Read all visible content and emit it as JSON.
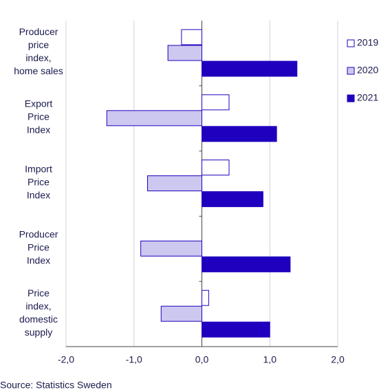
{
  "chart_data": {
    "type": "barh",
    "categories": [
      "Producer\nprice\nindex,\nhome sales",
      "Export\nPrice\nIndex",
      "Import\nPrice\nIndex",
      "Producer\nPrice\nIndex",
      "Price\nindex,\ndomestic\nsupply"
    ],
    "series": [
      {
        "name": "2019",
        "color": "#ffffff",
        "values": [
          -0.3,
          0.4,
          0.4,
          0,
          0.1
        ]
      },
      {
        "name": "2020",
        "color": "#ccc8f0",
        "values": [
          -0.5,
          -1.4,
          -0.8,
          -0.9,
          -0.6
        ]
      },
      {
        "name": "2021",
        "color": "#1e00be",
        "values": [
          1.4,
          1.1,
          0.9,
          1.3,
          1.0
        ]
      }
    ],
    "xlim": [
      -2,
      2
    ],
    "xticks": [
      {
        "value": -2,
        "label": "-2,0"
      },
      {
        "value": -1,
        "label": "-1,0"
      },
      {
        "value": 0,
        "label": "0,0"
      },
      {
        "value": 1,
        "label": "1,0"
      },
      {
        "value": 2,
        "label": "2,0"
      }
    ],
    "grid": true,
    "legend": "top-right",
    "source": "Source: Statistics Sweden"
  }
}
